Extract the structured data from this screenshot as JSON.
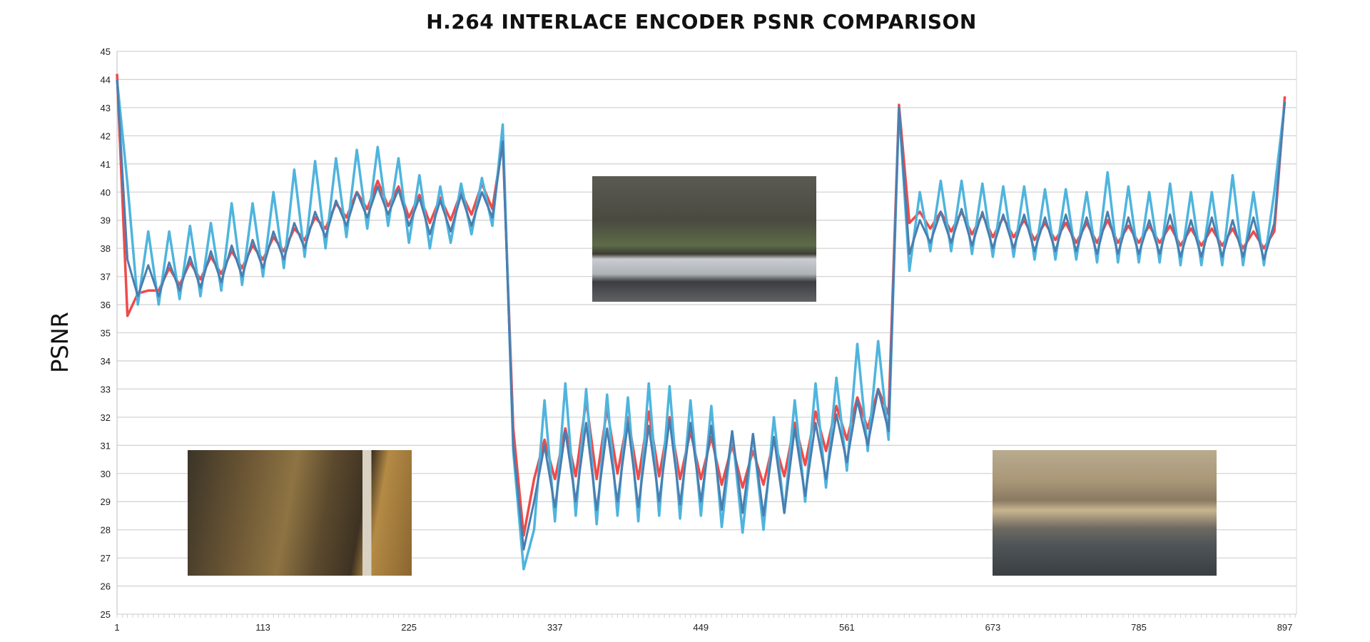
{
  "chart_data": {
    "type": "line",
    "title": "H.264 INTERLACE ENCODER PSNR COMPARISON",
    "xlabel": "",
    "ylabel": "PSNR",
    "xlim": [
      1,
      906
    ],
    "ylim": [
      25,
      45
    ],
    "grid": true,
    "legend": "none",
    "x_ticks": [
      1,
      113,
      225,
      337,
      449,
      561,
      673,
      785,
      897
    ],
    "y_ticks": [
      25,
      26,
      27,
      28,
      29,
      30,
      31,
      32,
      33,
      34,
      35,
      36,
      37,
      38,
      39,
      40,
      41,
      42,
      43,
      44,
      45
    ],
    "x_step": 8,
    "x_start": 1,
    "series": [
      {
        "color": "#f04a4a",
        "values": [
          44.2,
          35.6,
          36.4,
          36.5,
          36.5,
          37.3,
          36.7,
          37.5,
          36.9,
          37.7,
          37.1,
          37.9,
          37.3,
          38.1,
          37.6,
          38.4,
          37.9,
          38.7,
          38.3,
          39.1,
          38.7,
          39.6,
          39.1,
          40.0,
          39.4,
          40.4,
          39.5,
          40.2,
          39.1,
          39.9,
          38.9,
          39.8,
          39.0,
          40.0,
          39.2,
          40.3,
          39.4,
          41.8,
          31.6,
          27.8,
          29.8,
          31.2,
          29.8,
          31.6,
          29.9,
          32.6,
          29.8,
          32.3,
          30.0,
          32.0,
          29.8,
          32.2,
          29.9,
          32.0,
          29.8,
          31.5,
          29.8,
          31.3,
          29.6,
          31.0,
          29.5,
          30.8,
          29.6,
          31.2,
          29.9,
          31.8,
          30.3,
          32.2,
          30.8,
          32.4,
          31.2,
          32.7,
          31.6,
          33.0,
          32.1,
          43.1,
          38.9,
          39.3,
          38.7,
          39.3,
          38.6,
          39.3,
          38.5,
          39.2,
          38.4,
          39.1,
          38.4,
          39.0,
          38.3,
          38.9,
          38.3,
          38.9,
          38.2,
          38.9,
          38.2,
          39.0,
          38.2,
          38.8,
          38.2,
          38.8,
          38.2,
          38.8,
          38.1,
          38.7,
          38.1,
          38.7,
          38.1,
          38.7,
          38.0,
          38.6,
          38.0,
          38.6,
          43.4
        ]
      },
      {
        "color": "#4fb4dd",
        "values": [
          44.0,
          40.3,
          36.0,
          38.6,
          36.0,
          38.6,
          36.2,
          38.8,
          36.3,
          38.9,
          36.5,
          39.6,
          36.7,
          39.6,
          37.0,
          40.0,
          37.3,
          40.8,
          37.7,
          41.1,
          38.0,
          41.2,
          38.4,
          41.5,
          38.7,
          41.6,
          38.8,
          41.2,
          38.2,
          40.6,
          38.0,
          40.2,
          38.2,
          40.3,
          38.5,
          40.5,
          38.8,
          42.4,
          30.8,
          26.6,
          28.0,
          32.6,
          28.3,
          33.2,
          28.5,
          33.0,
          28.2,
          32.8,
          28.5,
          32.7,
          28.3,
          33.2,
          28.5,
          33.1,
          28.4,
          32.6,
          28.5,
          32.4,
          28.1,
          31.5,
          27.9,
          31.4,
          28.0,
          32.0,
          28.6,
          32.6,
          29.0,
          33.2,
          29.5,
          33.4,
          30.1,
          34.6,
          30.8,
          34.7,
          31.2,
          43.0,
          37.2,
          40.0,
          37.9,
          40.4,
          37.9,
          40.4,
          37.8,
          40.3,
          37.7,
          40.2,
          37.7,
          40.2,
          37.6,
          40.1,
          37.6,
          40.1,
          37.6,
          40.0,
          37.5,
          40.7,
          37.5,
          40.2,
          37.5,
          40.0,
          37.5,
          40.3,
          37.4,
          40.0,
          37.4,
          40.0,
          37.4,
          40.6,
          37.4,
          40.0,
          37.4,
          40.0,
          43.2
        ]
      },
      {
        "color": "#4a7eaf",
        "values": [
          44.0,
          37.6,
          36.3,
          37.4,
          36.3,
          37.5,
          36.5,
          37.7,
          36.6,
          37.9,
          36.8,
          38.1,
          37.0,
          38.3,
          37.3,
          38.6,
          37.6,
          38.9,
          38.0,
          39.3,
          38.4,
          39.7,
          38.8,
          40.0,
          39.1,
          40.2,
          39.2,
          40.1,
          38.8,
          39.8,
          38.5,
          39.7,
          38.6,
          39.9,
          38.8,
          40.0,
          39.1,
          41.8,
          31.0,
          27.3,
          29.0,
          31.0,
          28.8,
          31.5,
          29.0,
          31.8,
          28.7,
          31.6,
          29.0,
          31.8,
          28.8,
          31.7,
          29.0,
          31.9,
          28.9,
          31.8,
          29.0,
          31.7,
          28.7,
          31.5,
          28.6,
          31.4,
          28.5,
          31.3,
          28.6,
          31.6,
          29.2,
          31.8,
          29.8,
          32.1,
          30.4,
          32.6,
          31.0,
          33.0,
          31.5,
          43.0,
          37.8,
          39.0,
          38.2,
          39.3,
          38.2,
          39.4,
          38.1,
          39.3,
          38.0,
          39.2,
          38.0,
          39.2,
          37.9,
          39.1,
          37.9,
          39.2,
          37.9,
          39.1,
          37.8,
          39.3,
          37.8,
          39.1,
          37.8,
          39.0,
          37.8,
          39.2,
          37.7,
          39.0,
          37.7,
          39.1,
          37.7,
          39.0,
          37.7,
          39.1,
          37.6,
          38.9,
          43.2
        ]
      }
    ],
    "inset_photos": [
      "ship-museum",
      "park-waterfront",
      "city-skyline"
    ]
  }
}
